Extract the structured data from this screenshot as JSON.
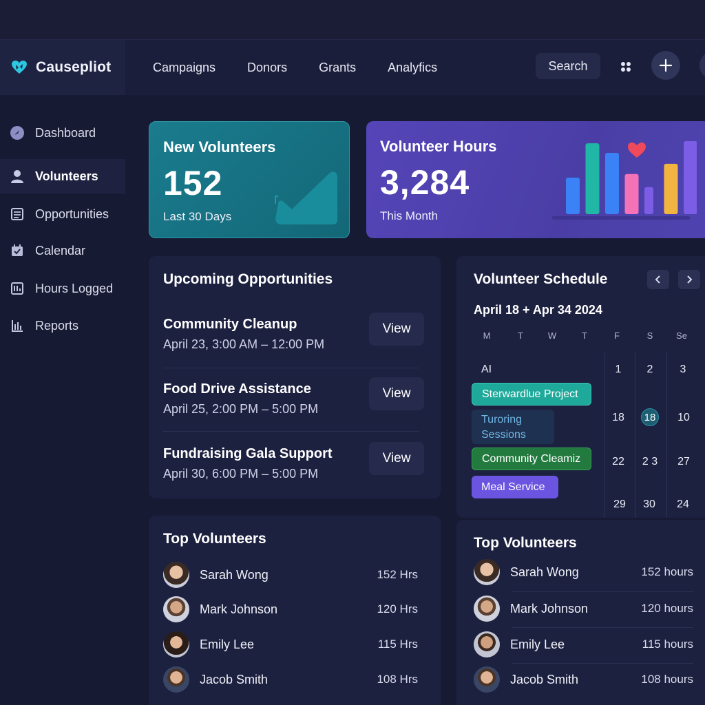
{
  "app": {
    "name": "Causepliot"
  },
  "header": {
    "nav": [
      "Campaigns",
      "Donors",
      "Grants",
      "Analyfics"
    ],
    "search_label": "Search"
  },
  "sidebar": {
    "items": [
      {
        "label": "Dashboard",
        "icon": "dashboard-icon"
      },
      {
        "label": "Volunteers",
        "icon": "user-icon",
        "active": true
      },
      {
        "label": "Opportunities",
        "icon": "list-icon"
      },
      {
        "label": "Calendar",
        "icon": "calendar-icon"
      },
      {
        "label": "Hours Logged",
        "icon": "clock-log-icon"
      },
      {
        "label": "Reports",
        "icon": "bar-chart-icon"
      }
    ]
  },
  "kpis": {
    "new_volunteers": {
      "title": "New Volunteers",
      "value": "152",
      "sub": "Last 30 Days"
    },
    "volunteer_hours": {
      "title": "Volunteer Hours",
      "value": "3,284",
      "sub": "This Month",
      "chart_bars": [
        {
          "level": 0.5,
          "color": "#3b82f6"
        },
        {
          "level": 0.97,
          "color": "#20b7a6"
        },
        {
          "level": 0.84,
          "color": "#3b82f6"
        },
        {
          "level": 0.55,
          "color": "#f472b6"
        },
        {
          "level": 0.37,
          "color": "#7c5de6"
        },
        {
          "level": 0.69,
          "color": "#f2b441"
        },
        {
          "level": 1.0,
          "color": "#7c5de6"
        }
      ]
    }
  },
  "opportunities": {
    "title": "Upcoming Opportunities",
    "view_label": "View",
    "items": [
      {
        "name": "Community Cleanup",
        "time": "April 23, 3:00 AM – 12:00 PM"
      },
      {
        "name": "Food Drive Assistance",
        "time": "April 25, 2:00 PM – 5:00 PM"
      },
      {
        "name": "Fundraising Gala Support",
        "time": "April 30, 6:00 PM – 5:00 PM"
      }
    ]
  },
  "schedule": {
    "title": "Volunteer Schedule",
    "range": "April 18 + Apr 34 2024",
    "days": [
      "M",
      "T",
      "W",
      "T",
      "F",
      "S",
      "Se"
    ],
    "ai_label": "AI",
    "events": {
      "teal": "Sterwardlue Project",
      "dark_line1": "Turoring",
      "dark_line2": "Sessions",
      "green": "Community Cleamiz",
      "purple": "Meal Service"
    },
    "dates": [
      [
        "1",
        "2",
        "3"
      ],
      [
        "18",
        "18",
        "10"
      ],
      [
        "22",
        "2 3",
        "27"
      ],
      [
        "29",
        "30",
        "24"
      ]
    ]
  },
  "top_volunteers_left": {
    "title": "Top Volunteers",
    "rows": [
      {
        "name": "Sarah Wong",
        "hours": "152 Hrs"
      },
      {
        "name": "Mark Johnson",
        "hours": "120 Hrs"
      },
      {
        "name": "Emily Lee",
        "hours": "115 Hrs"
      },
      {
        "name": "Jacob Smith",
        "hours": "108 Hrs"
      }
    ]
  },
  "top_volunteers_right": {
    "title": "Top Volunteers",
    "rows": [
      {
        "name": "Sarah Wong",
        "hours": "152 hours"
      },
      {
        "name": "Mark Johnson",
        "hours": "120 hours"
      },
      {
        "name": "Emily Lee",
        "hours": "115 hours"
      },
      {
        "name": "Jacob Smith",
        "hours": "108 hours"
      }
    ]
  },
  "colors": {
    "teal_card": "#1a7c8e",
    "purple_card": "#5545b8",
    "panel": "#1d2140",
    "background": "#161a33"
  }
}
